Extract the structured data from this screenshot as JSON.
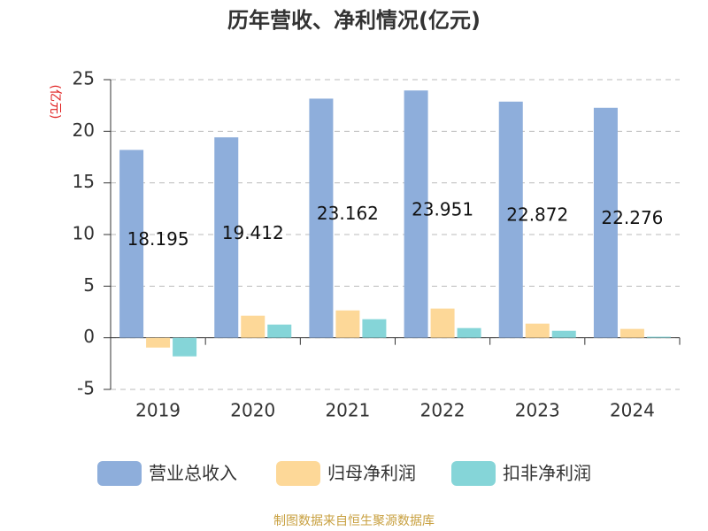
{
  "chart_data": {
    "type": "bar",
    "title": "历年营收、净利情况(亿元)",
    "y_unit": "(亿元)",
    "source": "制图数据来自恒生聚源数据库",
    "categories": [
      "2019",
      "2020",
      "2021",
      "2022",
      "2023",
      "2024"
    ],
    "series": [
      {
        "name": "营业总收入",
        "color": "#8eaedb",
        "values": [
          18.195,
          19.412,
          23.162,
          23.951,
          22.872,
          22.276
        ]
      },
      {
        "name": "归母净利润",
        "color": "#fdd898",
        "values": [
          -0.95,
          2.14,
          2.65,
          2.83,
          1.37,
          0.86
        ]
      },
      {
        "name": "扣非净利润",
        "color": "#85d5d8",
        "values": [
          -1.8,
          1.28,
          1.8,
          0.94,
          0.68,
          0.1
        ]
      }
    ],
    "ylim": [
      -5,
      25
    ],
    "yticks": [
      -5,
      0,
      5,
      10,
      15,
      20,
      25
    ],
    "grid": true
  }
}
